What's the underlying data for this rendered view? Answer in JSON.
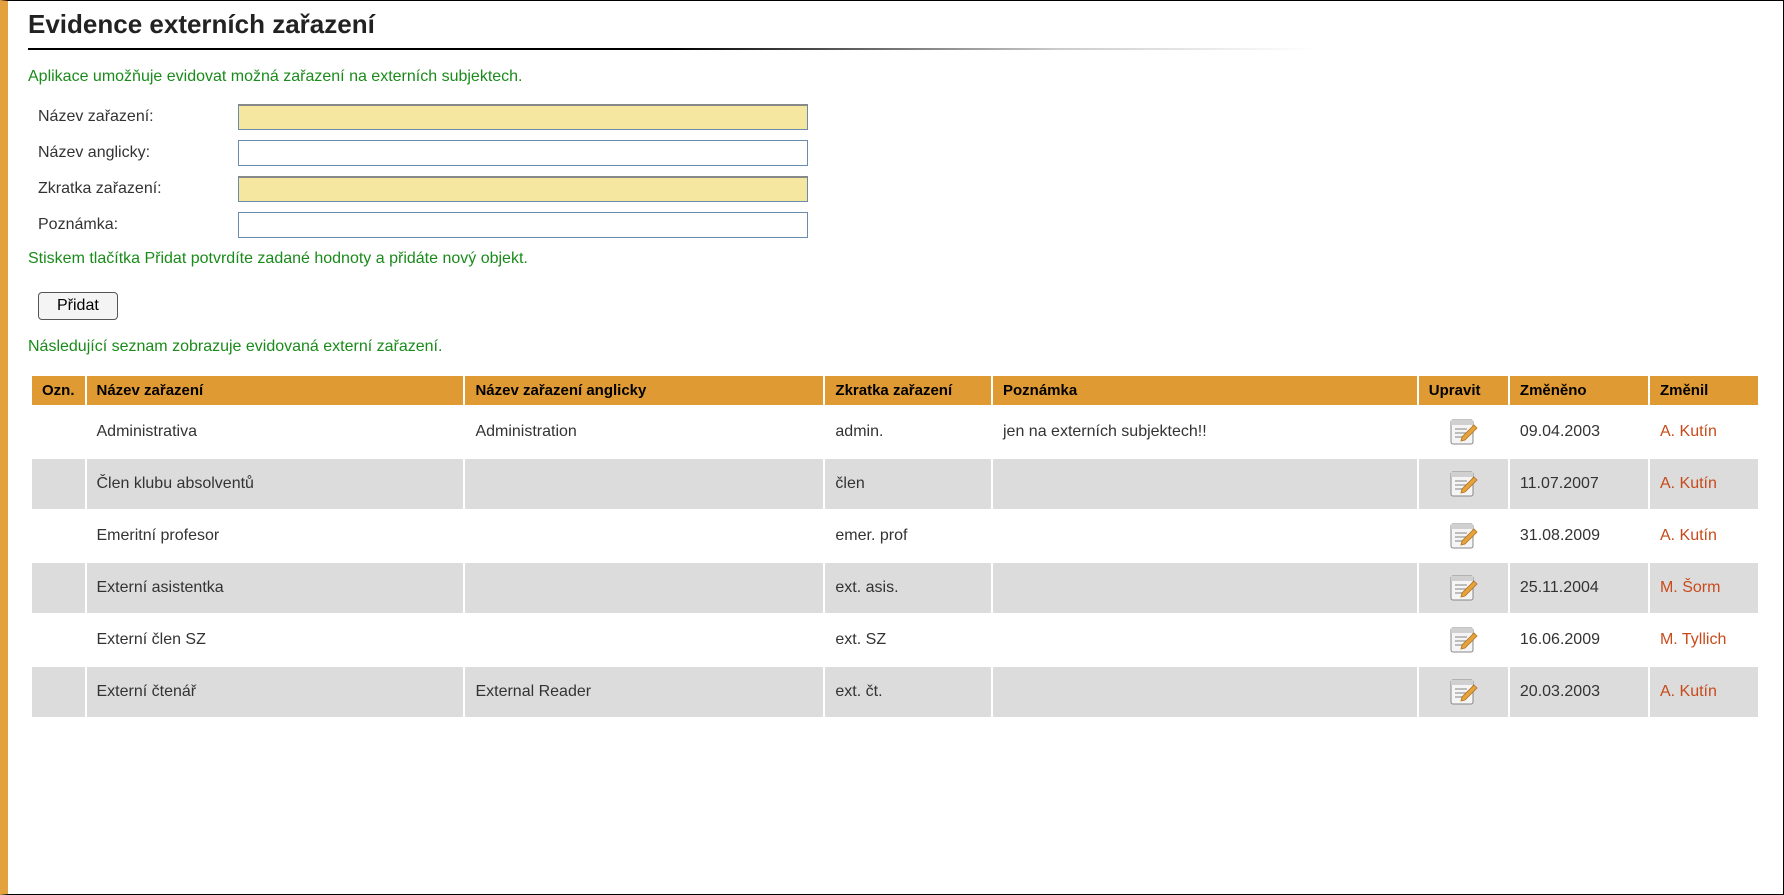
{
  "colors": {
    "accent_orange": "#e09a33",
    "sidebar_orange": "#e4a23e",
    "green_text": "#1a8b1a",
    "link_user": "#c84a1a",
    "input_required_bg": "#f5e6a0",
    "input_border": "#6a8caa",
    "row_odd_bg": "#ffffff",
    "row_even_bg": "#dcdcdc"
  },
  "header": {
    "title": "Evidence externích zařazení"
  },
  "intro_text": "Aplikace umožňuje evidovat možná zařazení na externích subjektech.",
  "form": {
    "fields": [
      {
        "label": "Název zařazení:",
        "value": "",
        "required": true
      },
      {
        "label": "Název anglicky:",
        "value": "",
        "required": false
      },
      {
        "label": "Zkratka zařazení:",
        "value": "",
        "required": true
      },
      {
        "label": "Poznámka:",
        "value": "",
        "required": false
      }
    ],
    "hint_text": "Stiskem tlačítka Přidat potvrdíte zadané hodnoty a přidáte nový objekt.",
    "submit_label": "Přidat"
  },
  "list_intro": "Následující seznam zobrazuje evidovaná externí zařazení.",
  "table": {
    "columns": [
      "Ozn.",
      "Název zařazení",
      "Název zařazení anglicky",
      "Zkratka zařazení",
      "Poznámka",
      "Upravit",
      "Změněno",
      "Změnil"
    ],
    "rows": [
      {
        "ozn": "",
        "nazev": "Administrativa",
        "nazev_en": "Administration",
        "zkratka": "admin.",
        "poznamka": "jen na externích subjektech!!",
        "zmeneno": "09.04.2003",
        "zmenil": "A. Kutín"
      },
      {
        "ozn": "",
        "nazev": "Člen klubu absolventů",
        "nazev_en": "",
        "zkratka": "člen",
        "poznamka": "",
        "zmeneno": "11.07.2007",
        "zmenil": "A. Kutín"
      },
      {
        "ozn": "",
        "nazev": "Emeritní profesor",
        "nazev_en": "",
        "zkratka": "emer. prof",
        "poznamka": "",
        "zmeneno": "31.08.2009",
        "zmenil": "A. Kutín"
      },
      {
        "ozn": "",
        "nazev": "Externí asistentka",
        "nazev_en": "",
        "zkratka": "ext. asis.",
        "poznamka": "",
        "zmeneno": "25.11.2004",
        "zmenil": "M. Šorm"
      },
      {
        "ozn": "",
        "nazev": "Externí člen SZ",
        "nazev_en": "",
        "zkratka": "ext. SZ",
        "poznamka": "",
        "zmeneno": "16.06.2009",
        "zmenil": "M. Tyllich"
      },
      {
        "ozn": "",
        "nazev": "Externí čtenář",
        "nazev_en": "External Reader",
        "zkratka": "ext. čt.",
        "poznamka": "",
        "zmeneno": "20.03.2003",
        "zmenil": "A. Kutín"
      }
    ]
  }
}
